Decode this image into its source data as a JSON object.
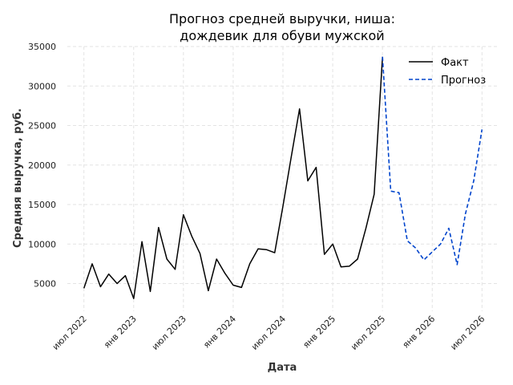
{
  "chart_data": {
    "type": "line",
    "title": "Прогноз средней выручки, ниша:\nдождевик для обуви мужской",
    "xlabel": "Дата",
    "ylabel": "Средняя выручка, руб.",
    "x_start": "2022-06",
    "x_ticks": [
      {
        "date": "2022-07",
        "label": "июл 2022"
      },
      {
        "date": "2023-01",
        "label": "янв 2023"
      },
      {
        "date": "2023-07",
        "label": "июл 2023"
      },
      {
        "date": "2024-01",
        "label": "янв 2024"
      },
      {
        "date": "2024-07",
        "label": "июл 2024"
      },
      {
        "date": "2025-01",
        "label": "янв 2025"
      },
      {
        "date": "2025-07",
        "label": "июл 2025"
      },
      {
        "date": "2026-01",
        "label": "янв 2026"
      },
      {
        "date": "2026-07",
        "label": "июл 2026"
      }
    ],
    "y_ticks": [
      5000,
      10000,
      15000,
      20000,
      25000,
      30000,
      35000
    ],
    "ylim": [
      1500,
      35000
    ],
    "xlim": [
      "2022-05",
      "2026-09"
    ],
    "grid": true,
    "legend": "top-right",
    "series": [
      {
        "name": "Факт",
        "color": "#000000",
        "style": "solid",
        "points": [
          [
            "2022-07",
            4400
          ],
          [
            "2022-08",
            7500
          ],
          [
            "2022-09",
            4600
          ],
          [
            "2022-10",
            6200
          ],
          [
            "2022-11",
            5000
          ],
          [
            "2022-12",
            6000
          ],
          [
            "2023-01",
            3100
          ],
          [
            "2023-02",
            10300
          ],
          [
            "2023-03",
            4000
          ],
          [
            "2023-04",
            12100
          ],
          [
            "2023-05",
            8100
          ],
          [
            "2023-06",
            6800
          ],
          [
            "2023-07",
            13700
          ],
          [
            "2023-08",
            11000
          ],
          [
            "2023-09",
            8800
          ],
          [
            "2023-10",
            4100
          ],
          [
            "2023-11",
            8100
          ],
          [
            "2023-12",
            6300
          ],
          [
            "2024-01",
            4800
          ],
          [
            "2024-02",
            4500
          ],
          [
            "2024-03",
            7500
          ],
          [
            "2024-04",
            9400
          ],
          [
            "2024-05",
            9300
          ],
          [
            "2024-06",
            8900
          ],
          [
            "2024-07",
            14800
          ],
          [
            "2024-08",
            21000
          ],
          [
            "2024-09",
            27100
          ],
          [
            "2024-10",
            18000
          ],
          [
            "2024-11",
            19700
          ],
          [
            "2024-12",
            8700
          ],
          [
            "2025-01",
            10000
          ],
          [
            "2025-02",
            7100
          ],
          [
            "2025-03",
            7200
          ],
          [
            "2025-04",
            8100
          ],
          [
            "2025-05",
            12000
          ],
          [
            "2025-06",
            16300
          ],
          [
            "2025-07",
            33700
          ]
        ]
      },
      {
        "name": "Прогноз",
        "color": "#0044cc",
        "style": "dashed",
        "points": [
          [
            "2025-07",
            33700
          ],
          [
            "2025-08",
            16700
          ],
          [
            "2025-09",
            16500
          ],
          [
            "2025-10",
            10400
          ],
          [
            "2025-11",
            9500
          ],
          [
            "2025-12",
            8000
          ],
          [
            "2026-01",
            9000
          ],
          [
            "2026-02",
            10000
          ],
          [
            "2026-03",
            12000
          ],
          [
            "2026-04",
            7400
          ],
          [
            "2026-05",
            13800
          ],
          [
            "2026-06",
            18000
          ],
          [
            "2026-07",
            24500
          ]
        ]
      }
    ]
  }
}
